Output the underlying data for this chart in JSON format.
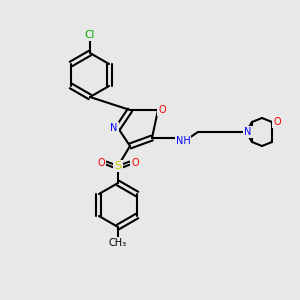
{
  "bg_color": "#e8e8e8",
  "bond_color": "#000000",
  "atom_colors": {
    "N": "#0000ff",
    "O": "#ff0000",
    "S": "#cccc00",
    "Cl": "#00aa00",
    "C": "#000000"
  }
}
